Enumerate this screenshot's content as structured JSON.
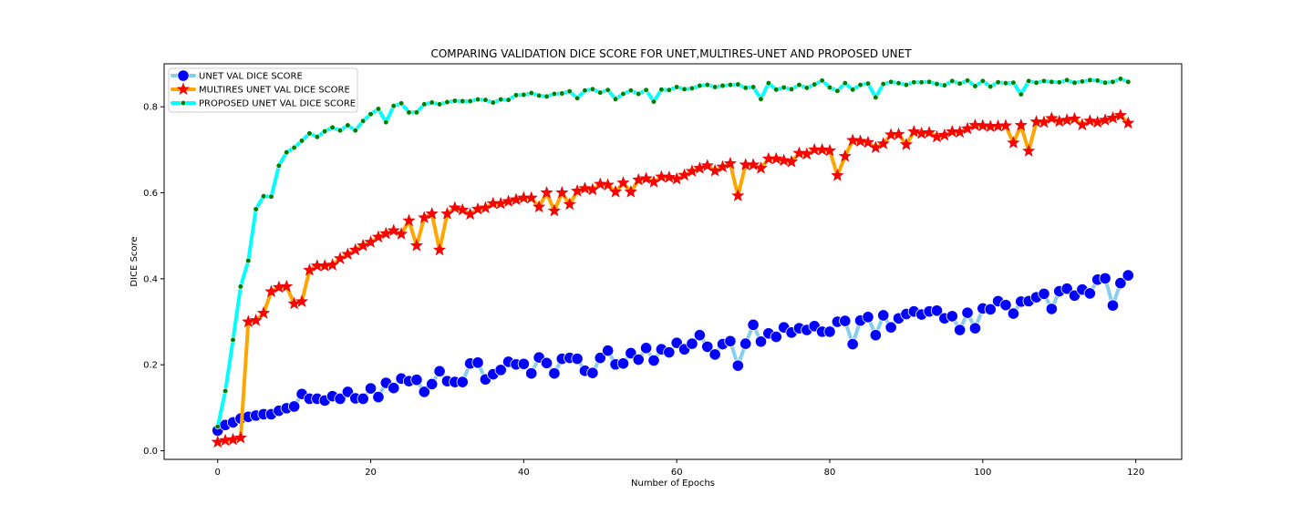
{
  "chart_data": {
    "type": "line",
    "title": "COMPARING VALIDATION DICE SCORE FOR UNET,MULTIRES-UNET AND PROPOSED UNET",
    "xlabel": "Number of Epochs",
    "ylabel": "DICE Score",
    "xlim": [
      -7,
      126
    ],
    "ylim": [
      -0.02,
      0.9
    ],
    "xticks": [
      0,
      20,
      40,
      60,
      80,
      100,
      120
    ],
    "yticks": [
      0.0,
      0.2,
      0.4,
      0.6,
      0.8
    ],
    "xtick_labels": [
      "0",
      "20",
      "40",
      "60",
      "80",
      "100",
      "120"
    ],
    "ytick_labels": [
      "0.0",
      "0.2",
      "0.4",
      "0.6",
      "0.8"
    ],
    "grid": false,
    "legend_position": "upper-left",
    "series": [
      {
        "name": "UNET VAL DICE SCORE",
        "line_color": "#87ceeb",
        "marker": "circle",
        "marker_color": "#0000ff",
        "values": [
          0.047,
          0.06,
          0.066,
          0.075,
          0.079,
          0.082,
          0.085,
          0.085,
          0.093,
          0.099,
          0.103,
          0.132,
          0.121,
          0.121,
          0.117,
          0.127,
          0.121,
          0.137,
          0.122,
          0.121,
          0.145,
          0.125,
          0.158,
          0.146,
          0.168,
          0.162,
          0.165,
          0.137,
          0.155,
          0.185,
          0.162,
          0.16,
          0.16,
          0.203,
          0.205,
          0.166,
          0.178,
          0.188,
          0.207,
          0.201,
          0.202,
          0.18,
          0.217,
          0.204,
          0.18,
          0.214,
          0.216,
          0.214,
          0.186,
          0.181,
          0.216,
          0.233,
          0.201,
          0.203,
          0.227,
          0.212,
          0.239,
          0.21,
          0.236,
          0.229,
          0.251,
          0.236,
          0.249,
          0.269,
          0.242,
          0.224,
          0.248,
          0.255,
          0.198,
          0.249,
          0.293,
          0.254,
          0.273,
          0.265,
          0.287,
          0.275,
          0.285,
          0.281,
          0.29,
          0.277,
          0.277,
          0.3,
          0.302,
          0.248,
          0.303,
          0.311,
          0.269,
          0.315,
          0.287,
          0.308,
          0.318,
          0.324,
          0.317,
          0.324,
          0.326,
          0.308,
          0.313,
          0.281,
          0.321,
          0.285,
          0.331,
          0.329,
          0.348,
          0.339,
          0.319,
          0.347,
          0.348,
          0.357,
          0.365,
          0.33,
          0.371,
          0.377,
          0.361,
          0.375,
          0.366,
          0.398,
          0.401,
          0.338,
          0.39,
          0.408
        ]
      },
      {
        "name": "MULTIRES UNET VAL DICE SCORE",
        "line_color": "#ffa500",
        "marker": "star",
        "marker_color": "#ff0000",
        "values": [
          0.02,
          0.024,
          0.026,
          0.03,
          0.3,
          0.303,
          0.32,
          0.37,
          0.38,
          0.382,
          0.342,
          0.347,
          0.42,
          0.43,
          0.43,
          0.432,
          0.447,
          0.457,
          0.467,
          0.477,
          0.485,
          0.497,
          0.505,
          0.512,
          0.504,
          0.535,
          0.477,
          0.542,
          0.551,
          0.467,
          0.551,
          0.565,
          0.56,
          0.55,
          0.562,
          0.565,
          0.575,
          0.575,
          0.58,
          0.584,
          0.588,
          0.588,
          0.567,
          0.6,
          0.558,
          0.6,
          0.573,
          0.604,
          0.61,
          0.607,
          0.62,
          0.618,
          0.602,
          0.623,
          0.602,
          0.63,
          0.633,
          0.625,
          0.637,
          0.636,
          0.632,
          0.641,
          0.65,
          0.657,
          0.663,
          0.651,
          0.66,
          0.668,
          0.593,
          0.665,
          0.665,
          0.657,
          0.679,
          0.679,
          0.675,
          0.672,
          0.692,
          0.69,
          0.7,
          0.7,
          0.698,
          0.64,
          0.685,
          0.722,
          0.72,
          0.717,
          0.705,
          0.714,
          0.735,
          0.736,
          0.712,
          0.742,
          0.738,
          0.74,
          0.73,
          0.734,
          0.742,
          0.741,
          0.749,
          0.757,
          0.756,
          0.754,
          0.755,
          0.756,
          0.716,
          0.757,
          0.697,
          0.765,
          0.764,
          0.773,
          0.766,
          0.769,
          0.772,
          0.758,
          0.767,
          0.764,
          0.769,
          0.774,
          0.78,
          0.762
        ]
      },
      {
        "name": "PROPOSED UNET VAL DICE SCORE",
        "line_color": "#00ffff",
        "marker": "dot",
        "marker_color": "#008000",
        "values": [
          0.056,
          0.139,
          0.258,
          0.382,
          0.442,
          0.562,
          0.592,
          0.591,
          0.663,
          0.694,
          0.705,
          0.721,
          0.738,
          0.73,
          0.743,
          0.752,
          0.745,
          0.757,
          0.745,
          0.767,
          0.783,
          0.795,
          0.764,
          0.802,
          0.808,
          0.787,
          0.787,
          0.806,
          0.81,
          0.806,
          0.811,
          0.814,
          0.813,
          0.813,
          0.817,
          0.816,
          0.81,
          0.817,
          0.816,
          0.827,
          0.828,
          0.832,
          0.826,
          0.824,
          0.83,
          0.831,
          0.836,
          0.82,
          0.838,
          0.841,
          0.833,
          0.839,
          0.818,
          0.83,
          0.838,
          0.83,
          0.839,
          0.812,
          0.84,
          0.839,
          0.846,
          0.841,
          0.843,
          0.849,
          0.851,
          0.846,
          0.849,
          0.851,
          0.852,
          0.844,
          0.846,
          0.818,
          0.855,
          0.84,
          0.845,
          0.841,
          0.851,
          0.844,
          0.852,
          0.861,
          0.845,
          0.837,
          0.855,
          0.84,
          0.851,
          0.854,
          0.822,
          0.853,
          0.858,
          0.855,
          0.851,
          0.857,
          0.857,
          0.858,
          0.853,
          0.85,
          0.86,
          0.854,
          0.861,
          0.848,
          0.86,
          0.847,
          0.857,
          0.855,
          0.856,
          0.829,
          0.86,
          0.856,
          0.86,
          0.858,
          0.857,
          0.862,
          0.856,
          0.859,
          0.862,
          0.861,
          0.856,
          0.858,
          0.865,
          0.858
        ]
      }
    ]
  }
}
